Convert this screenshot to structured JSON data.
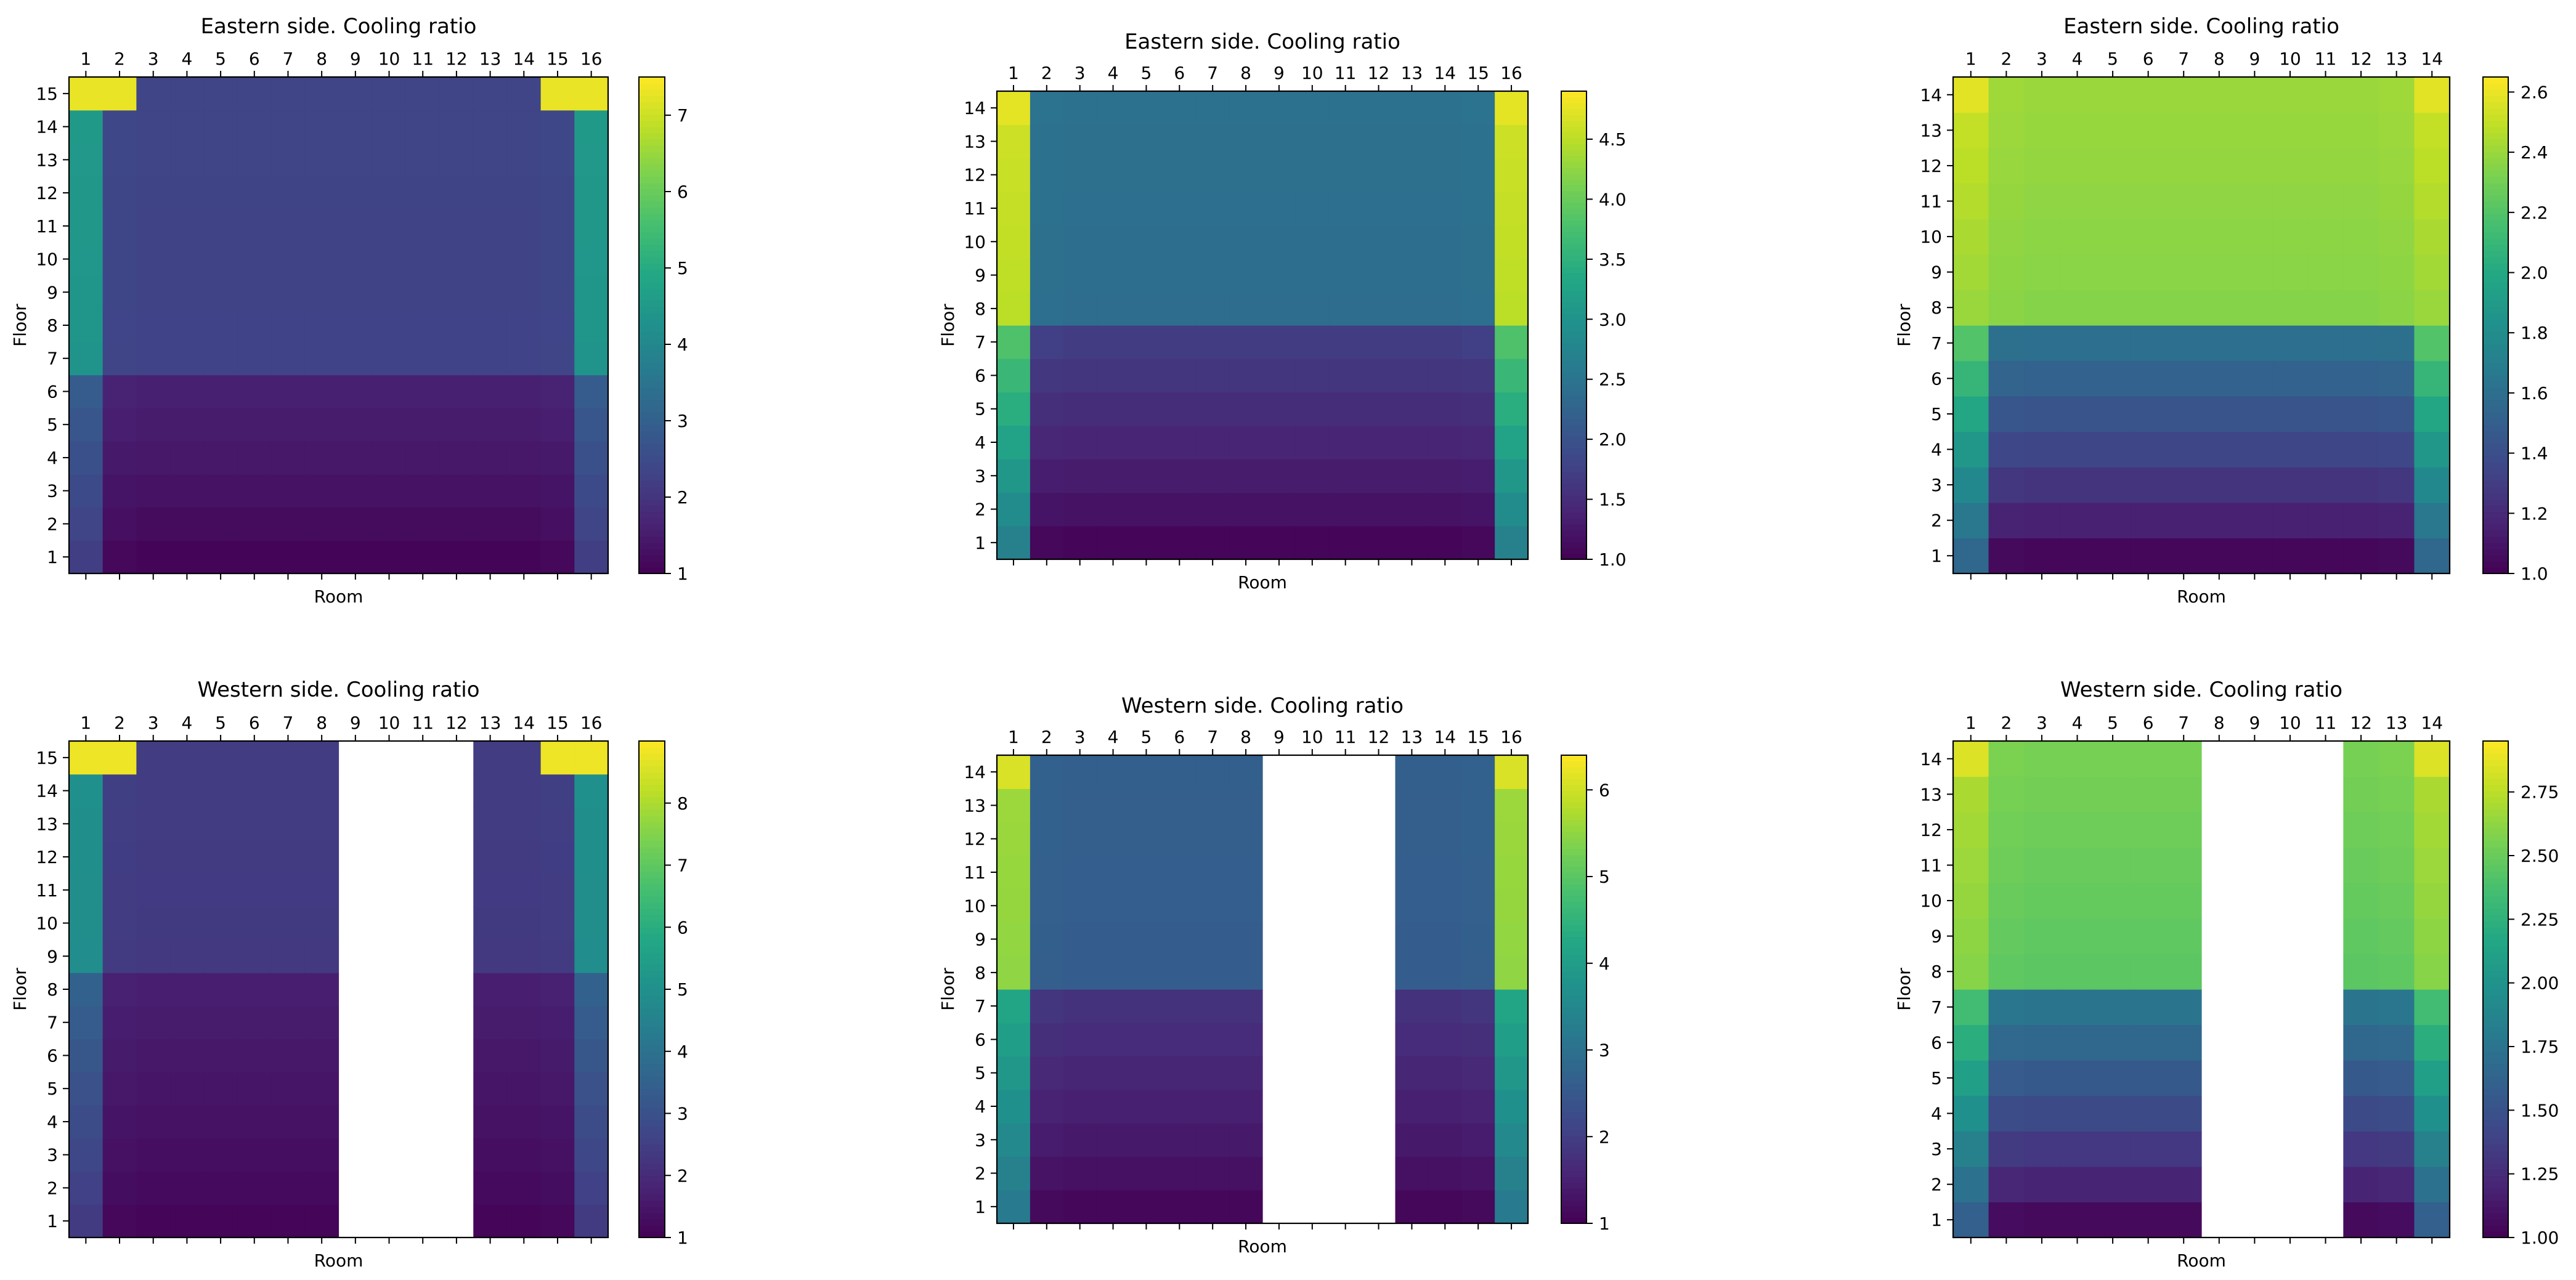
{
  "chart_data": [
    {
      "type": "heatmap",
      "title": "Eastern side. Cooling ratio",
      "xlabel": "Room",
      "ylabel": "Floor",
      "rooms": 16,
      "floors": 15,
      "colorbar": {
        "min": 1,
        "max": 7.5,
        "ticks": [
          1,
          2,
          3,
          4,
          5,
          6,
          7
        ]
      },
      "blank_rooms": [],
      "profile": {
        "edge_top": 7.3,
        "edge_mid": 4.5,
        "edge_low": 2.9,
        "edge_bottom": 2.2,
        "interior_top": 2.35,
        "interior_mid": 2.3,
        "interior_low": 1.6,
        "interior_bottom": 1.08,
        "transition_floor": 6,
        "edge_rooms": 1
      }
    },
    {
      "type": "heatmap",
      "title": "Eastern side. Cooling ratio",
      "xlabel": "Room",
      "ylabel": "Floor",
      "rooms": 16,
      "floors": 14,
      "colorbar": {
        "min": 1.0,
        "max": 4.9,
        "ticks": [
          1.0,
          1.5,
          2.0,
          2.5,
          3.0,
          3.5,
          4.0,
          4.5
        ]
      },
      "blank_rooms": [],
      "profile": {
        "edge_top": 4.75,
        "edge_mid": 4.6,
        "edge_low": 3.8,
        "edge_bottom": 2.7,
        "interior_top": 2.45,
        "interior_mid": 2.4,
        "interior_low": 1.7,
        "interior_bottom": 1.05,
        "transition_floor": 7,
        "edge_rooms": 1
      }
    },
    {
      "type": "heatmap",
      "title": "Eastern side. Cooling ratio",
      "xlabel": "Room",
      "ylabel": "Floor",
      "rooms": 14,
      "floors": 14,
      "colorbar": {
        "min": 1.0,
        "max": 2.65,
        "ticks": [
          1.0,
          1.2,
          1.4,
          1.6,
          1.8,
          2.0,
          2.2,
          2.4,
          2.6
        ]
      },
      "blank_rooms": [],
      "profile": {
        "edge_top": 2.58,
        "edge_mid": 2.5,
        "edge_low": 2.2,
        "edge_bottom": 1.55,
        "interior_top": 2.4,
        "interior_mid": 2.35,
        "interior_low": 1.6,
        "interior_bottom": 1.03,
        "transition_floor": 7,
        "edge_rooms": 1
      }
    },
    {
      "type": "heatmap",
      "title": "Western side. Cooling ratio",
      "xlabel": "Room",
      "ylabel": "Floor",
      "rooms": 16,
      "floors": 15,
      "colorbar": {
        "min": 1,
        "max": 9,
        "ticks": [
          1,
          2,
          3,
          4,
          5,
          6,
          7,
          8
        ]
      },
      "blank_rooms": [
        9,
        10,
        11,
        12
      ],
      "profile": {
        "edge_top": 8.8,
        "edge_mid": 5.0,
        "edge_low": 3.5,
        "edge_bottom": 2.4,
        "interior_top": 2.45,
        "interior_mid": 2.35,
        "interior_low": 1.7,
        "interior_bottom": 1.1,
        "transition_floor": 8,
        "edge_rooms": 1
      }
    },
    {
      "type": "heatmap",
      "title": "Western side. Cooling ratio",
      "xlabel": "Room",
      "ylabel": "Floor",
      "rooms": 16,
      "floors": 14,
      "colorbar": {
        "min": 1,
        "max": 6.4,
        "ticks": [
          1,
          2,
          3,
          4,
          5,
          6
        ]
      },
      "blank_rooms": [
        9,
        10,
        11,
        12
      ],
      "profile": {
        "edge_top": 6.1,
        "edge_mid": 5.6,
        "edge_low": 4.2,
        "edge_bottom": 3.2,
        "interior_top": 2.65,
        "interior_mid": 2.6,
        "interior_low": 1.8,
        "interior_bottom": 1.1,
        "transition_floor": 7,
        "edge_rooms": 1
      }
    },
    {
      "type": "heatmap",
      "title": "Western side. Cooling ratio",
      "xlabel": "Room",
      "ylabel": "Floor",
      "rooms": 14,
      "floors": 14,
      "colorbar": {
        "min": 1.0,
        "max": 2.95,
        "ticks": [
          1.0,
          1.25,
          1.5,
          1.75,
          2.0,
          2.25,
          2.5,
          2.75
        ]
      },
      "blank_rooms": [
        8,
        9,
        10,
        11
      ],
      "profile": {
        "edge_top": 2.85,
        "edge_mid": 2.7,
        "edge_low": 2.35,
        "edge_bottom": 1.6,
        "interior_top": 2.55,
        "interior_mid": 2.45,
        "interior_low": 1.75,
        "interior_bottom": 1.05,
        "transition_floor": 7,
        "edge_rooms": 1
      }
    }
  ]
}
